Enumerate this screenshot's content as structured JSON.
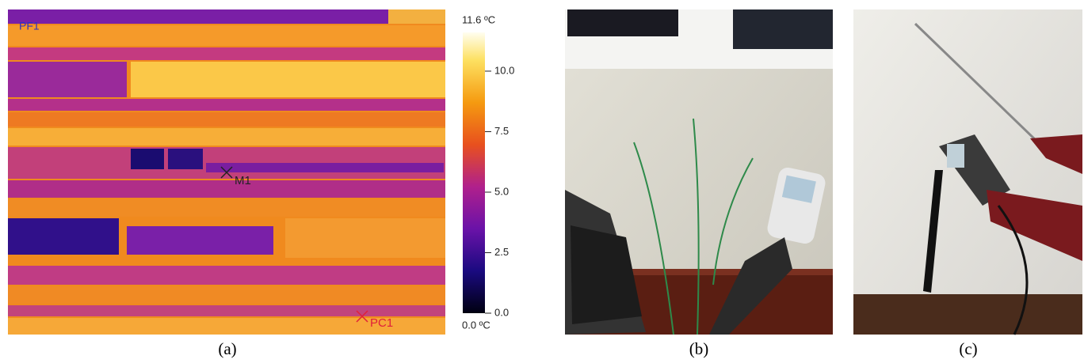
{
  "panels": [
    {
      "caption": "(a)",
      "markers": [
        {
          "label": "PF1"
        },
        {
          "label": "M1"
        },
        {
          "label": "PC1"
        }
      ],
      "colorbar": {
        "max_label": "11.6 ºC",
        "min_label": "0.0 ºC",
        "range": [
          0,
          11.6
        ],
        "ticks": [
          {
            "value": 0,
            "label": "0.0"
          },
          {
            "value": 2.5,
            "label": "2.5"
          },
          {
            "value": 5,
            "label": "5.0"
          },
          {
            "value": 7.5,
            "label": "7.5"
          },
          {
            "value": 10,
            "label": "10.0"
          }
        ]
      }
    },
    {
      "caption": "(b)"
    },
    {
      "caption": "(c)"
    }
  ]
}
